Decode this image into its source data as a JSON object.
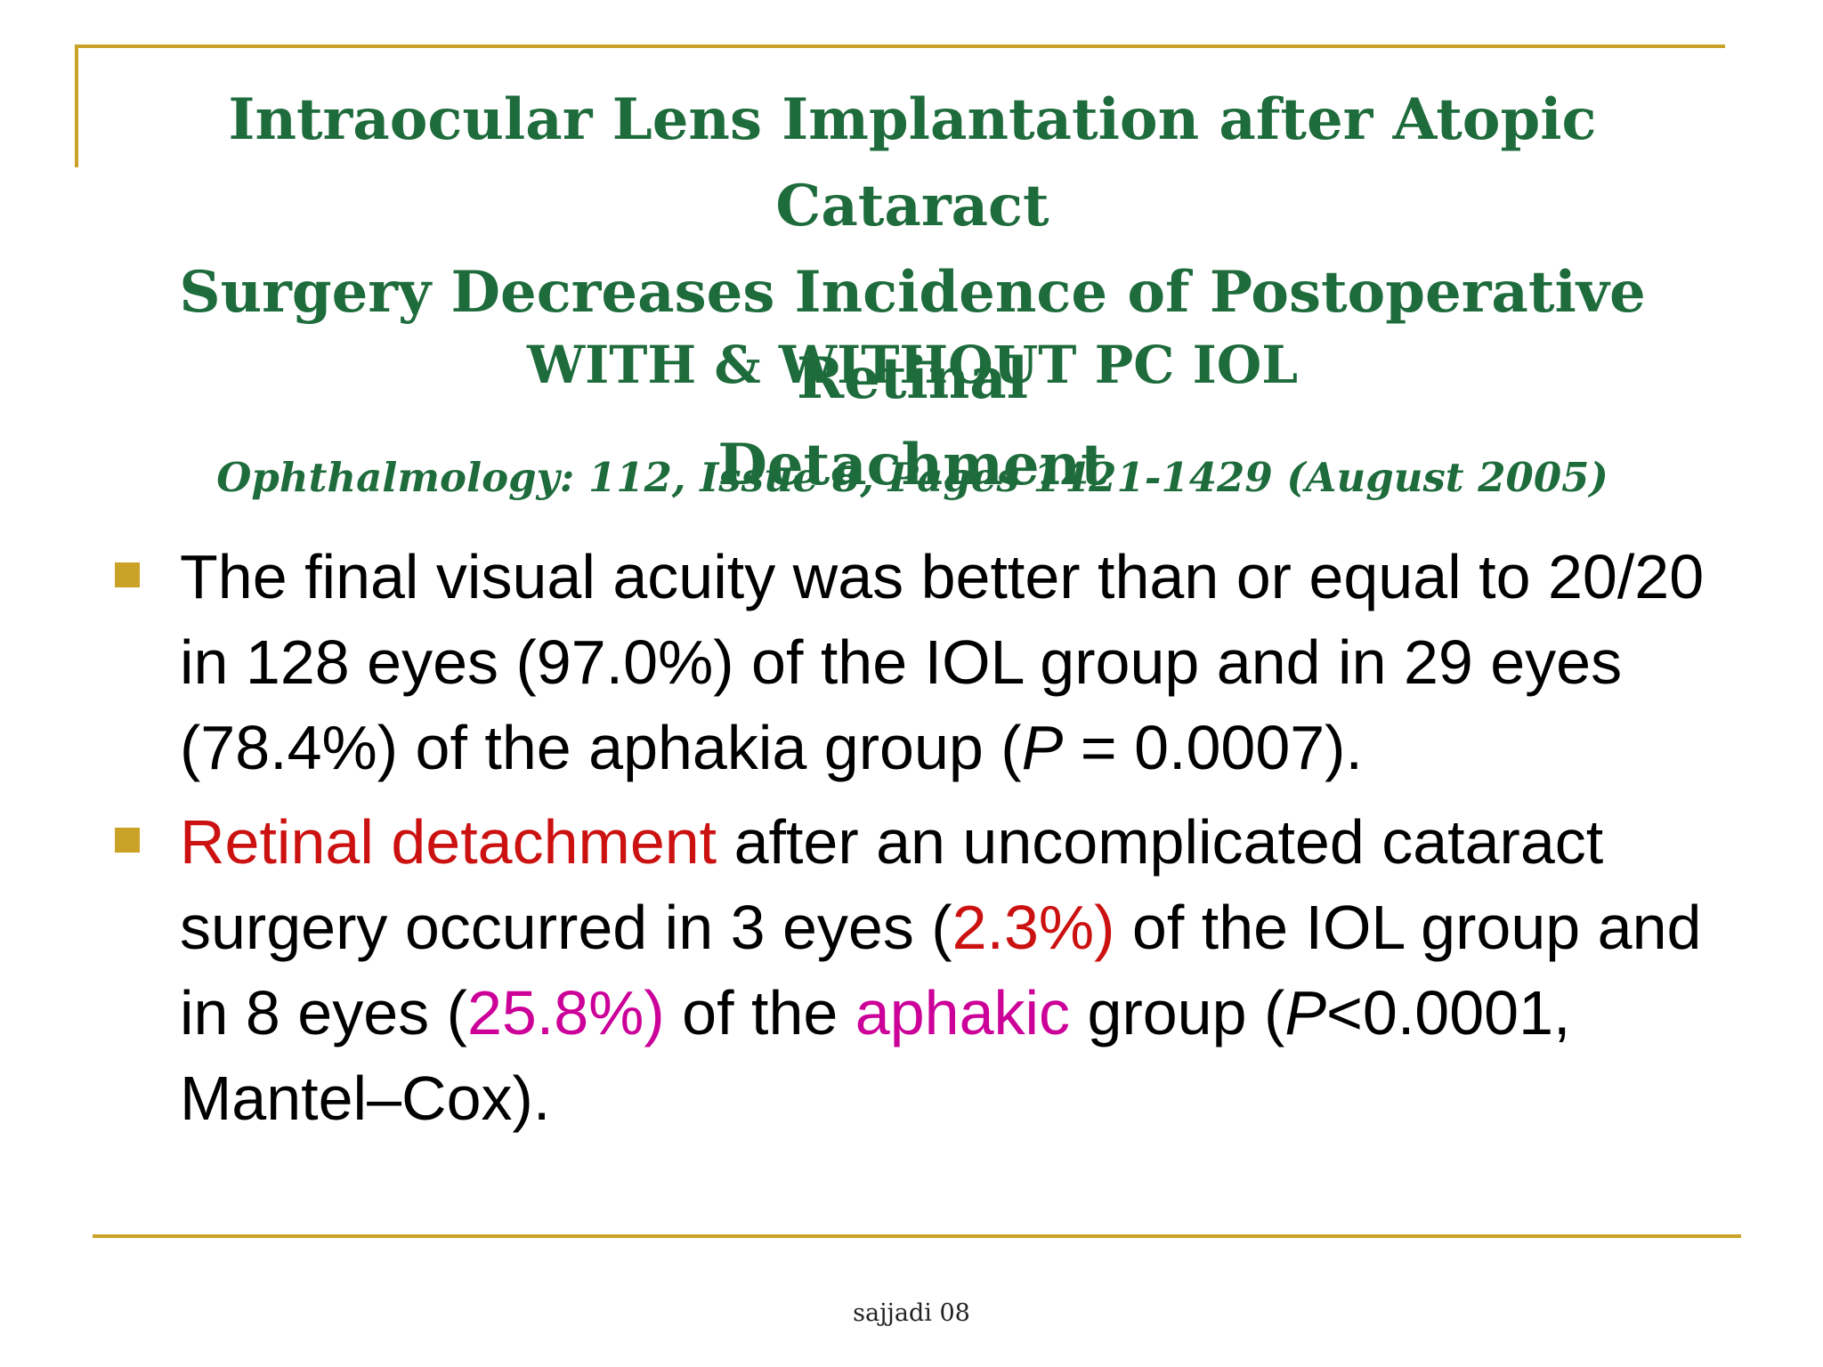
{
  "title": {
    "line1": "Intraocular Lens Implantation after Atopic Cataract",
    "line2": "Surgery Decreases Incidence of Postoperative Retinal",
    "line3": "Detachment"
  },
  "subtitle": "WITH & WITHOUT PC IOL",
  "citation": "Ophthalmology: 112, Issue 8, Pages 1421-1429 (August 2005)",
  "bullets": [
    {
      "part1": "The final visual acuity was better than or equal to 20/20 in 128 eyes (97.0%) of the IOL group and in 29 eyes (78.4%) of the aphakia group (",
      "p_italic": "P",
      "part2": " = 0.0007)."
    },
    {
      "red_lead": "Retinal detachment",
      "part1": " after an uncomplicated cataract surgery occurred in 3 eyes (",
      "red_pct": "2.3%)",
      "part2": " of the IOL group and in 8 eyes (",
      "magenta_pct": "25.8%)",
      "part3": " of the ",
      "magenta_word": "aphakic",
      "part4": " group (",
      "p_italic": "P",
      "part5": "<0.0001, Mantel–Cox)."
    }
  ],
  "footer": "sajjadi 08",
  "colors": {
    "title_green": "#1E6B3C",
    "accent_gold": "#C9A227",
    "red": "#CC1111",
    "magenta": "#CC0099"
  }
}
